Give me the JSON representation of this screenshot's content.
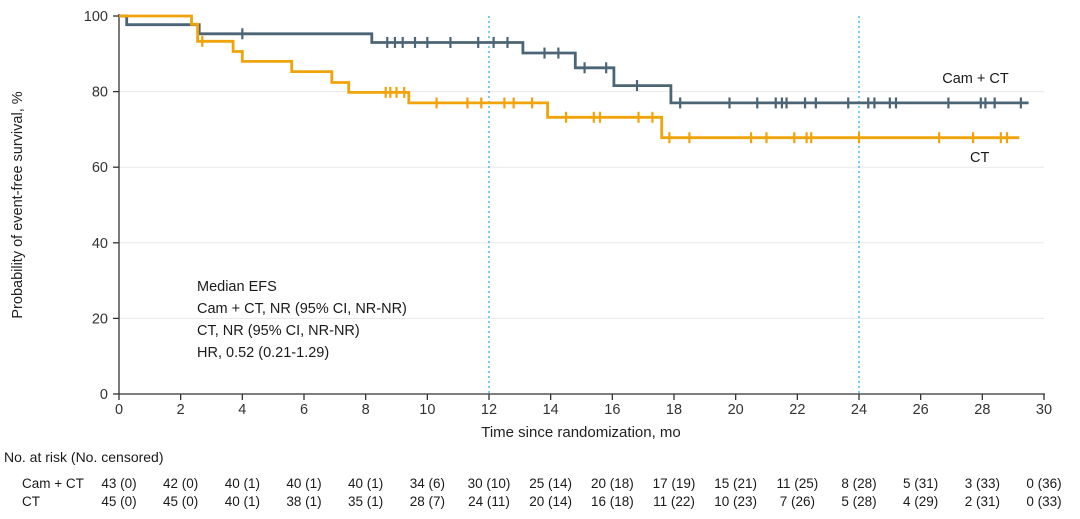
{
  "chart_data": {
    "type": "line",
    "subtype": "kaplan-meier-step",
    "title": "",
    "xlabel": "Time since randomization, mo",
    "ylabel": "Probability of event-free survival, %",
    "xlim": [
      0,
      30
    ],
    "ylim": [
      0,
      100
    ],
    "xticks": [
      0,
      2,
      4,
      6,
      8,
      10,
      12,
      14,
      16,
      18,
      20,
      22,
      24,
      26,
      28,
      30
    ],
    "yticks": [
      0,
      20,
      40,
      60,
      80,
      100
    ],
    "gridlines_y": [
      20,
      40,
      60,
      80
    ],
    "grid": "horizontal-light",
    "grid_color": "#e8e8e8",
    "reference_lines_x": [
      12,
      24
    ],
    "reference_line_color": "#3fb8e8",
    "legend_position": "curve-end-labels",
    "series": [
      {
        "id": "cam-ct",
        "name": "Cam + CT",
        "label": "Cam + CT",
        "color": "#4b6576",
        "steps": [
          [
            0,
            100
          ],
          [
            0.25,
            97.7
          ],
          [
            2.6,
            95.3
          ],
          [
            8.2,
            93.0
          ],
          [
            13.1,
            90.2
          ],
          [
            14.8,
            86.3
          ],
          [
            16.05,
            81.6
          ],
          [
            17.9,
            77.0
          ]
        ],
        "end_x": 29.5,
        "censors": [
          [
            4.0,
            95.3
          ],
          [
            8.7,
            93.0
          ],
          [
            8.95,
            93.0
          ],
          [
            9.2,
            93.0
          ],
          [
            9.6,
            93.0
          ],
          [
            10.0,
            93.0
          ],
          [
            10.75,
            93.0
          ],
          [
            11.65,
            93.0
          ],
          [
            12.15,
            93.0
          ],
          [
            12.6,
            93.0
          ],
          [
            13.8,
            90.2
          ],
          [
            14.25,
            90.2
          ],
          [
            15.1,
            86.3
          ],
          [
            15.8,
            86.3
          ],
          [
            16.8,
            81.6
          ],
          [
            18.2,
            77.0
          ],
          [
            19.8,
            77.0
          ],
          [
            20.7,
            77.0
          ],
          [
            21.3,
            77.0
          ],
          [
            21.5,
            77.0
          ],
          [
            21.65,
            77.0
          ],
          [
            22.25,
            77.0
          ],
          [
            22.6,
            77.0
          ],
          [
            23.65,
            77.0
          ],
          [
            24.3,
            77.0
          ],
          [
            24.5,
            77.0
          ],
          [
            25.0,
            77.0
          ],
          [
            25.2,
            77.0
          ],
          [
            26.9,
            77.0
          ],
          [
            27.95,
            77.0
          ],
          [
            28.1,
            77.0
          ],
          [
            28.4,
            77.0
          ],
          [
            29.25,
            77.0
          ]
        ],
        "label_x": 26.7,
        "label_y": 82.3
      },
      {
        "id": "ct",
        "name": "CT",
        "label": "CT",
        "color": "#f0a30b",
        "steps": [
          [
            0,
            100
          ],
          [
            2.35,
            97.8
          ],
          [
            2.55,
            93.3
          ],
          [
            3.7,
            90.6
          ],
          [
            4.0,
            88.0
          ],
          [
            5.6,
            85.3
          ],
          [
            6.9,
            82.4
          ],
          [
            7.45,
            79.8
          ],
          [
            9.4,
            77.0
          ],
          [
            13.9,
            73.2
          ],
          [
            17.6,
            67.8
          ]
        ],
        "end_x": 29.2,
        "censors": [
          [
            2.7,
            93.3
          ],
          [
            8.65,
            79.8
          ],
          [
            8.8,
            79.8
          ],
          [
            9.0,
            79.8
          ],
          [
            9.25,
            79.8
          ],
          [
            10.3,
            77.0
          ],
          [
            11.3,
            77.0
          ],
          [
            11.75,
            77.0
          ],
          [
            12.5,
            77.0
          ],
          [
            12.8,
            77.0
          ],
          [
            13.4,
            77.0
          ],
          [
            14.5,
            73.2
          ],
          [
            15.4,
            73.2
          ],
          [
            15.6,
            73.2
          ],
          [
            16.85,
            73.2
          ],
          [
            17.3,
            73.2
          ],
          [
            17.85,
            67.8
          ],
          [
            18.5,
            67.8
          ],
          [
            20.5,
            67.8
          ],
          [
            21.0,
            67.8
          ],
          [
            21.9,
            67.8
          ],
          [
            22.3,
            67.8
          ],
          [
            22.45,
            67.8
          ],
          [
            24.0,
            67.8
          ],
          [
            26.6,
            67.8
          ],
          [
            27.7,
            67.8
          ],
          [
            28.6,
            67.8
          ],
          [
            28.8,
            67.8
          ]
        ],
        "label_x": 27.6,
        "label_y": 61.4
      }
    ],
    "annotation": {
      "lines": [
        "Median EFS",
        "Cam + CT, NR (95% CI, NR-NR)",
        "CT, NR (95% CI, NR-NR)",
        "HR, 0.52 (0.21-1.29)"
      ]
    }
  },
  "risk_table": {
    "header": "No. at risk (No. censored)",
    "time_points": [
      0,
      2,
      4,
      6,
      8,
      10,
      12,
      14,
      16,
      18,
      20,
      22,
      24,
      26,
      28,
      30
    ],
    "rows": [
      {
        "id": "cam-ct",
        "label": "Cam + CT",
        "values": [
          "43 (0)",
          "42 (0)",
          "40 (1)",
          "40 (1)",
          "40 (1)",
          "34 (6)",
          "30 (10)",
          "25 (14)",
          "20 (18)",
          "17 (19)",
          "15 (21)",
          "11 (25)",
          "8 (28)",
          "5 (31)",
          "3 (33)",
          "0 (36)"
        ]
      },
      {
        "id": "ct",
        "label": "CT",
        "values": [
          "45 (0)",
          "45 (0)",
          "40 (1)",
          "38 (1)",
          "35 (1)",
          "28 (7)",
          "24 (11)",
          "20 (14)",
          "16 (18)",
          "11 (22)",
          "10 (23)",
          "7 (26)",
          "5 (28)",
          "4 (29)",
          "2 (31)",
          "0 (33)"
        ]
      }
    ]
  }
}
